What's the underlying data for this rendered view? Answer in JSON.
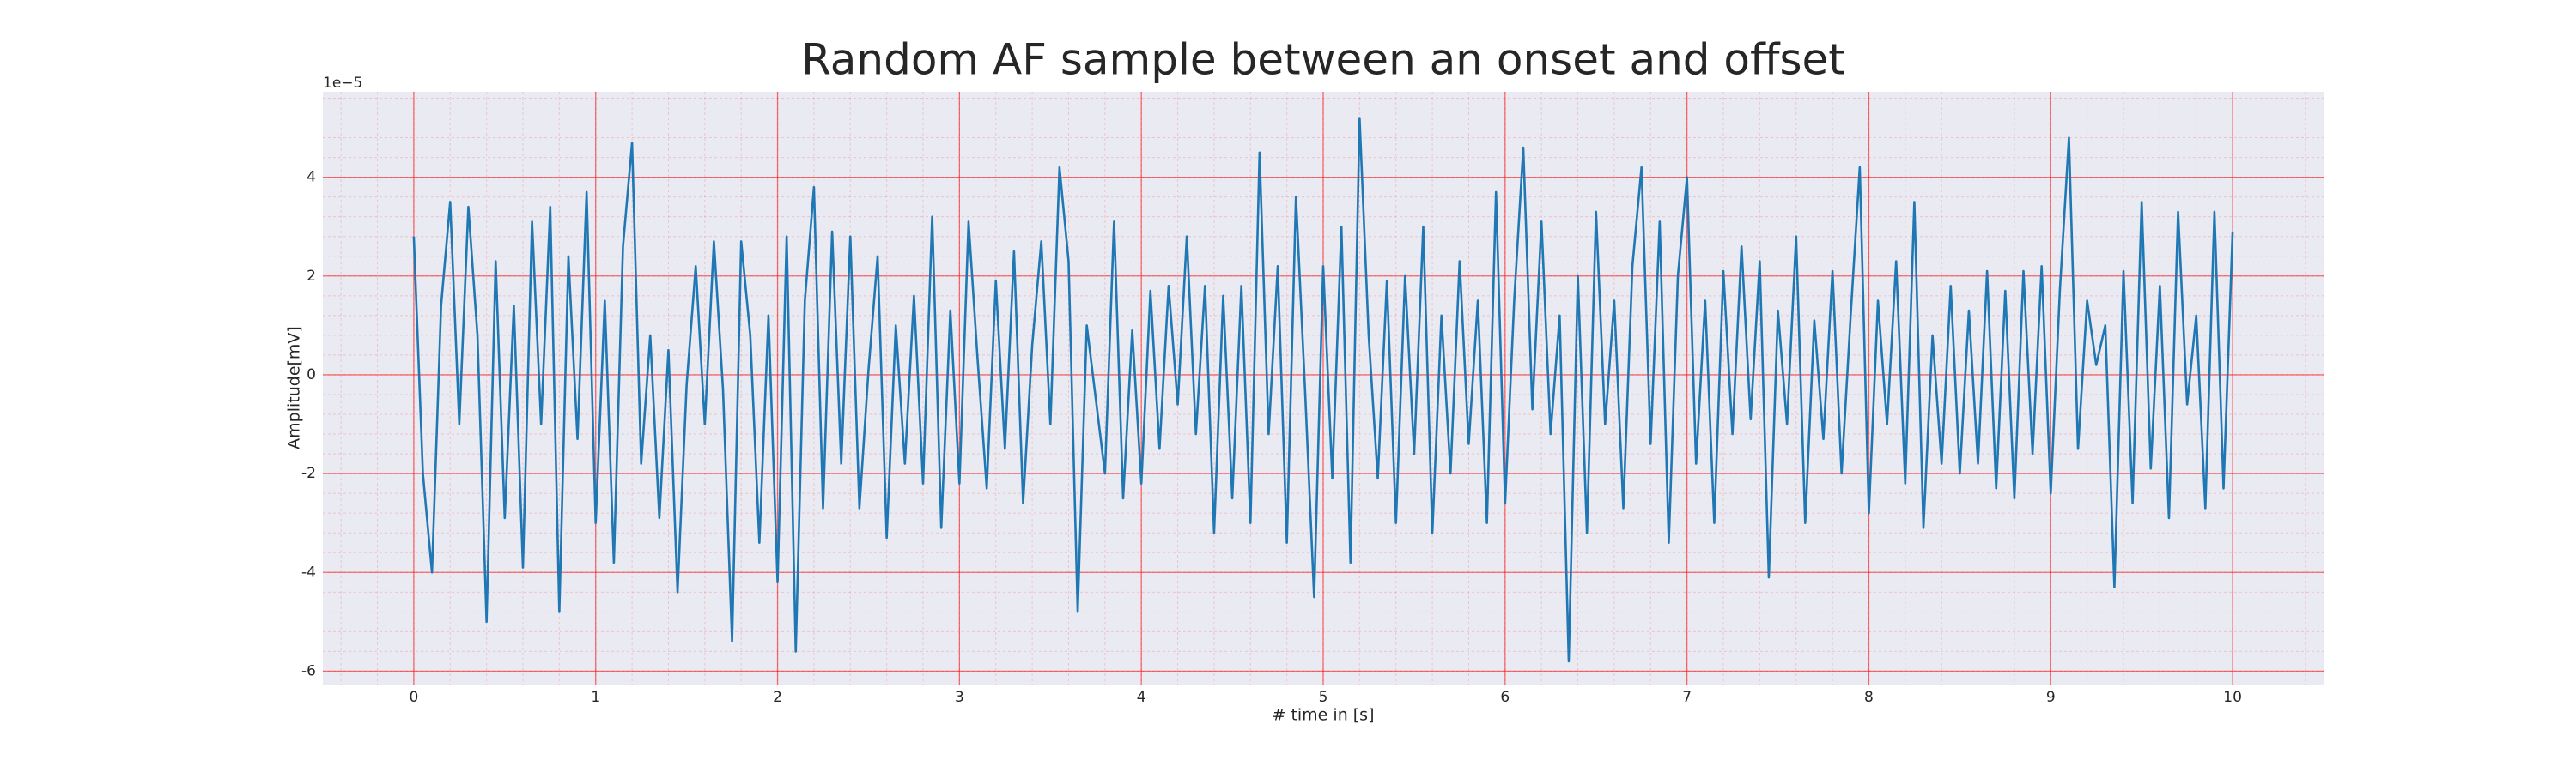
{
  "chart_data": {
    "type": "line",
    "title": "Random AF sample between an onset and offset",
    "xlabel": "# time in [s]",
    "ylabel": "Amplitude[mV]",
    "y_offset_label": "1e−5",
    "x": [
      0,
      0.05,
      0.1,
      0.15,
      0.2,
      0.25,
      0.3,
      0.35,
      0.4,
      0.45,
      0.5,
      0.55,
      0.6,
      0.65,
      0.7,
      0.75,
      0.8,
      0.85,
      0.9,
      0.95,
      1,
      1.05,
      1.1,
      1.15,
      1.2,
      1.25,
      1.3,
      1.35,
      1.4,
      1.45,
      1.5,
      1.55,
      1.6,
      1.65,
      1.7,
      1.75,
      1.8,
      1.85,
      1.9,
      1.95,
      2,
      2.05,
      2.1,
      2.15,
      2.2,
      2.25,
      2.3,
      2.35,
      2.4,
      2.45,
      2.5,
      2.55,
      2.6,
      2.65,
      2.7,
      2.75,
      2.8,
      2.85,
      2.9,
      2.95,
      3,
      3.05,
      3.1,
      3.15,
      3.2,
      3.25,
      3.3,
      3.35,
      3.4,
      3.45,
      3.5,
      3.55,
      3.6,
      3.65,
      3.7,
      3.75,
      3.8,
      3.85,
      3.9,
      3.95,
      4,
      4.05,
      4.1,
      4.15,
      4.2,
      4.25,
      4.3,
      4.35,
      4.4,
      4.45,
      4.5,
      4.55,
      4.6,
      4.65,
      4.7,
      4.75,
      4.8,
      4.85,
      4.9,
      4.95,
      5,
      5.05,
      5.1,
      5.15,
      5.2,
      5.25,
      5.3,
      5.35,
      5.4,
      5.45,
      5.5,
      5.55,
      5.6,
      5.65,
      5.7,
      5.75,
      5.8,
      5.85,
      5.9,
      5.95,
      6,
      6.05,
      6.1,
      6.15,
      6.2,
      6.25,
      6.3,
      6.35,
      6.4,
      6.45,
      6.5,
      6.55,
      6.6,
      6.65,
      6.7,
      6.75,
      6.8,
      6.85,
      6.9,
      6.95,
      7,
      7.05,
      7.1,
      7.15,
      7.2,
      7.25,
      7.3,
      7.35,
      7.4,
      7.45,
      7.5,
      7.55,
      7.6,
      7.65,
      7.7,
      7.75,
      7.8,
      7.85,
      7.9,
      7.95,
      8,
      8.05,
      8.1,
      8.15,
      8.2,
      8.25,
      8.3,
      8.35,
      8.4,
      8.45,
      8.5,
      8.55,
      8.6,
      8.65,
      8.7,
      8.75,
      8.8,
      8.85,
      8.9,
      8.95,
      9,
      9.05,
      9.1,
      9.15,
      9.2,
      9.25,
      9.3,
      9.35,
      9.4,
      9.45,
      9.5,
      9.55,
      9.6,
      9.65,
      9.7,
      9.75,
      9.8,
      9.85,
      9.9,
      9.95,
      10
    ],
    "series": [
      {
        "color": "#1f77b4",
        "values": [
          2.8,
          -2.0,
          -4.0,
          1.4,
          3.5,
          -1.0,
          3.4,
          0.8,
          -5.0,
          2.3,
          -2.9,
          1.4,
          -3.9,
          3.1,
          -1.0,
          3.4,
          -4.8,
          2.4,
          -1.3,
          3.7,
          -3.0,
          1.5,
          -3.8,
          2.6,
          4.7,
          -1.8,
          0.8,
          -2.9,
          0.5,
          -4.4,
          -0.2,
          2.2,
          -1.0,
          2.7,
          -0.3,
          -5.4,
          2.7,
          0.8,
          -3.4,
          1.2,
          -4.2,
          2.8,
          -5.6,
          1.5,
          3.8,
          -2.7,
          2.9,
          -1.8,
          2.8,
          -2.7,
          0.1,
          2.4,
          -3.3,
          1.0,
          -1.8,
          1.6,
          -2.2,
          3.2,
          -3.1,
          1.3,
          -2.2,
          3.1,
          0.3,
          -2.3,
          1.9,
          -1.5,
          2.5,
          -2.6,
          0.6,
          2.7,
          -1.0,
          4.2,
          2.3,
          -4.8,
          1.0,
          -0.5,
          -2.0,
          3.1,
          -2.5,
          0.9,
          -2.2,
          1.7,
          -1.5,
          1.8,
          -0.6,
          2.8,
          -1.2,
          1.8,
          -3.2,
          1.6,
          -2.5,
          1.8,
          -3.0,
          4.5,
          -1.2,
          2.2,
          -3.4,
          3.6,
          -0.3,
          -4.5,
          2.2,
          -2.1,
          3.0,
          -3.8,
          5.2,
          0.8,
          -2.1,
          1.9,
          -3.0,
          2.0,
          -1.6,
          3.0,
          -3.2,
          1.2,
          -2.0,
          2.3,
          -1.4,
          1.5,
          -3.0,
          3.7,
          -2.6,
          1.5,
          4.6,
          -0.7,
          3.1,
          -1.2,
          1.2,
          -5.8,
          2.0,
          -3.2,
          3.3,
          -1.0,
          1.5,
          -2.7,
          2.2,
          4.2,
          -1.4,
          3.1,
          -3.4,
          2.0,
          4.0,
          -1.8,
          1.5,
          -3.0,
          2.1,
          -1.2,
          2.6,
          -0.9,
          2.3,
          -4.1,
          1.3,
          -1.0,
          2.8,
          -3.0,
          1.1,
          -1.3,
          2.1,
          -2.0,
          1.2,
          4.2,
          -2.8,
          1.5,
          -1.0,
          2.3,
          -2.2,
          3.5,
          -3.1,
          0.8,
          -1.8,
          1.8,
          -2.0,
          1.3,
          -1.8,
          2.1,
          -2.3,
          1.7,
          -2.5,
          2.1,
          -1.6,
          2.2,
          -2.4,
          1.7,
          4.8,
          -1.5,
          1.5,
          0.2,
          1.0,
          -4.3,
          2.1,
          -2.6,
          3.5,
          -1.9,
          1.8,
          -2.9,
          3.3,
          -0.6,
          1.2,
          -2.7,
          3.3,
          -2.3,
          2.9
        ]
      }
    ],
    "xlim": [
      -0.5,
      10.5
    ],
    "ylim": [
      -6.27,
      5.73
    ],
    "xticks": [
      0,
      1,
      2,
      3,
      4,
      5,
      6,
      7,
      8,
      9,
      10
    ],
    "yticks": [
      -6,
      -4,
      -2,
      0,
      2,
      4
    ],
    "grid": true,
    "minor_grid": true
  }
}
